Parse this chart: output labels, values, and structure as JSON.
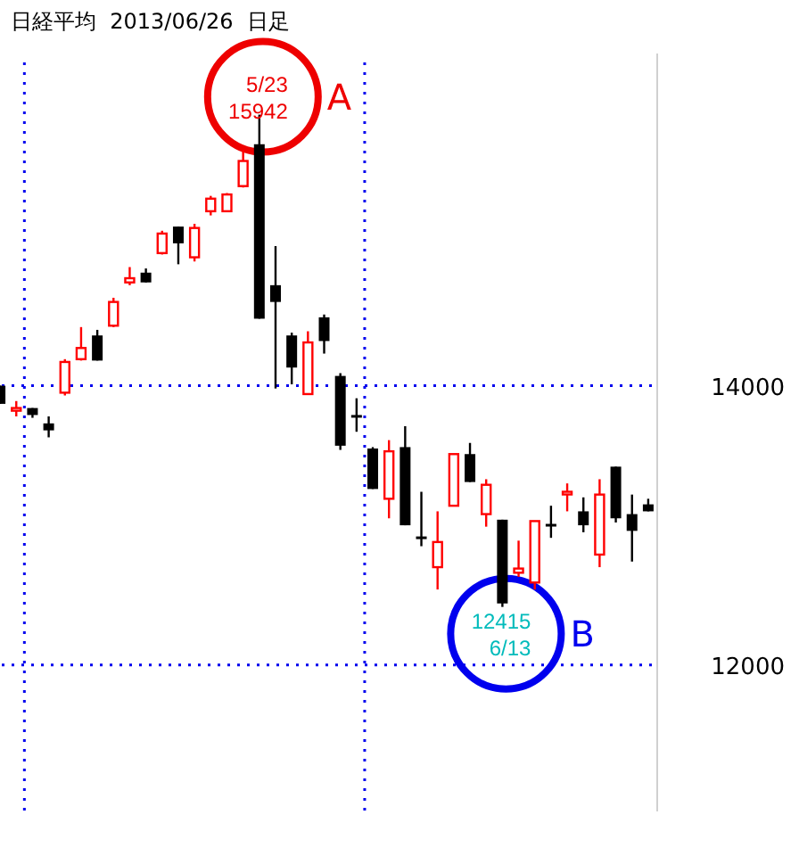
{
  "chart_data": {
    "type": "candlestick",
    "title": "日経平均  2013/06/26  日足",
    "categories": [
      null,
      null,
      null,
      null,
      null,
      null,
      null,
      null,
      null,
      null,
      null,
      null,
      null,
      null,
      null,
      null,
      null,
      null,
      null,
      null,
      null,
      null,
      null,
      null,
      null,
      null,
      null,
      null,
      null,
      null,
      null,
      null,
      null,
      null,
      null,
      null,
      null,
      null,
      null,
      null,
      null
    ],
    "ohlc": [
      [
        14000,
        14000,
        13870,
        13870
      ],
      [
        13830,
        13890,
        13780,
        13840
      ],
      [
        13840,
        13840,
        13770,
        13790
      ],
      [
        13730,
        13780,
        13630,
        13680
      ],
      [
        13950,
        14190,
        13930,
        14170
      ],
      [
        14190,
        14420,
        14180,
        14270
      ],
      [
        14360,
        14400,
        14180,
        14180
      ],
      [
        14430,
        14630,
        14420,
        14600
      ],
      [
        14740,
        14850,
        14720,
        14770
      ],
      [
        14810,
        14840,
        14740,
        14740
      ],
      [
        14950,
        15110,
        14940,
        15090
      ],
      [
        15140,
        15140,
        14870,
        15020
      ],
      [
        14920,
        15160,
        14890,
        15130
      ],
      [
        15250,
        15360,
        15220,
        15340
      ],
      [
        15250,
        15380,
        15250,
        15370
      ],
      [
        15430,
        15690,
        15420,
        15610
      ],
      [
        15730,
        15942,
        14480,
        14480
      ],
      [
        14720,
        15000,
        13980,
        14600
      ],
      [
        14360,
        14380,
        14010,
        14130
      ],
      [
        13940,
        14390,
        13940,
        14310
      ],
      [
        14490,
        14510,
        14230,
        14320
      ],
      [
        14070,
        14090,
        13540,
        13570
      ],
      [
        13790,
        13910,
        13670,
        13780
      ],
      [
        13550,
        13560,
        13260,
        13260
      ],
      [
        13190,
        13610,
        13050,
        13530
      ],
      [
        13560,
        13710,
        13000,
        13000
      ],
      [
        12920,
        13240,
        12850,
        12910
      ],
      [
        12700,
        13100,
        12540,
        12880
      ],
      [
        13140,
        13510,
        13140,
        13510
      ],
      [
        13510,
        13590,
        13310,
        13310
      ],
      [
        13080,
        13330,
        12990,
        13290
      ],
      [
        13040,
        13040,
        12415,
        12440
      ],
      [
        12660,
        12890,
        12630,
        12690
      ],
      [
        12590,
        13030,
        12540,
        13030
      ],
      [
        13010,
        13140,
        12910,
        13000
      ],
      [
        13230,
        13300,
        13100,
        13240
      ],
      [
        13100,
        13200,
        12950,
        13000
      ],
      [
        12790,
        13330,
        12700,
        13220
      ],
      [
        13420,
        13420,
        13020,
        13050
      ],
      [
        13080,
        13220,
        12740,
        12960
      ],
      [
        13150,
        13190,
        13100,
        13100
      ]
    ],
    "ylim": [
      10950,
      16380
    ],
    "yticks": [
      12000,
      14000
    ],
    "grid": "y",
    "annotations": [
      "5/23",
      "15942",
      "A",
      "12415",
      "6/13",
      "B"
    ]
  }
}
